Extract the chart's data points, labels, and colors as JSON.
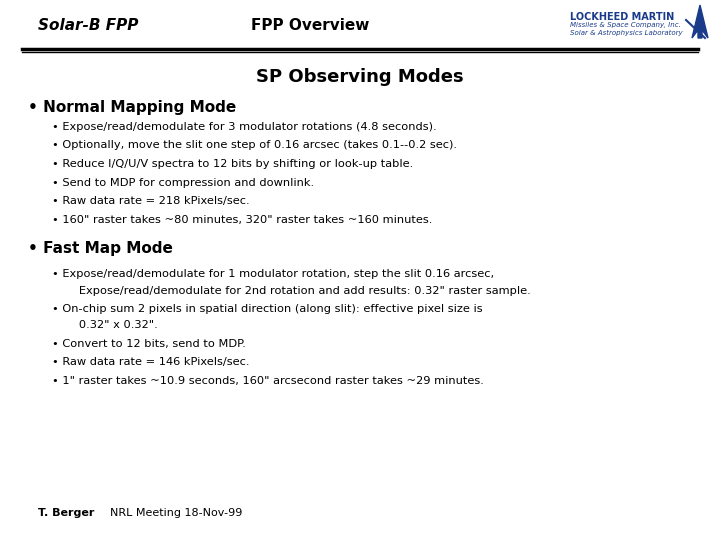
{
  "bg_color": "#ffffff",
  "header_left": "Solar-B FPP",
  "header_center": "FPP Overview",
  "header_logo_line1": "LOCKHEED MARTIN",
  "header_logo_line2": "Missiles & Space Company, Inc.",
  "header_logo_line3": "Solar & Astrophysics Laboratory",
  "title": "SP Observing Modes",
  "section1_header": "• Normal Mapping Mode",
  "section1_bullets": [
    "• Expose/read/demodulate for 3 modulator rotations (4.8 seconds).",
    "• Optionally, move the slit one step of 0.16 arcsec (takes 0.1--0.2 sec).",
    "• Reduce I/Q/U/V spectra to 12 bits by shifting or look-up table.",
    "• Send to MDP for compression and downlink.",
    "• Raw data rate = 218 kPixels/sec.",
    "• 160\" raster takes ~80 minutes, 320\" raster takes ~160 minutes."
  ],
  "section2_header": "• Fast Map Mode",
  "section2_bullets_line1a": "• Expose/read/demodulate for 1 modulator rotation, step the slit 0.16 arcsec,",
  "section2_bullets_line1b": "   Expose/read/demodulate for 2nd rotation and add results: 0.32\" raster sample.",
  "section2_bullets_line2a": "• On-chip sum 2 pixels in spatial direction (along slit): effective pixel size is",
  "section2_bullets_line2b": "   0.32\" x 0.32\".",
  "section2_bullets_single": [
    "• Convert to 12 bits, send to MDP.",
    "• Raw data rate = 146 kPixels/sec.",
    "• 1\" raster takes ~10.9 seconds, 160\" arcsecond raster takes ~29 minutes."
  ],
  "footer_left": "T. Berger",
  "footer_right": "NRL Meeting 18-Nov-99",
  "logo_color": "#1a3a8a",
  "line_thickness1": 2.5,
  "line_thickness2": 1.0
}
